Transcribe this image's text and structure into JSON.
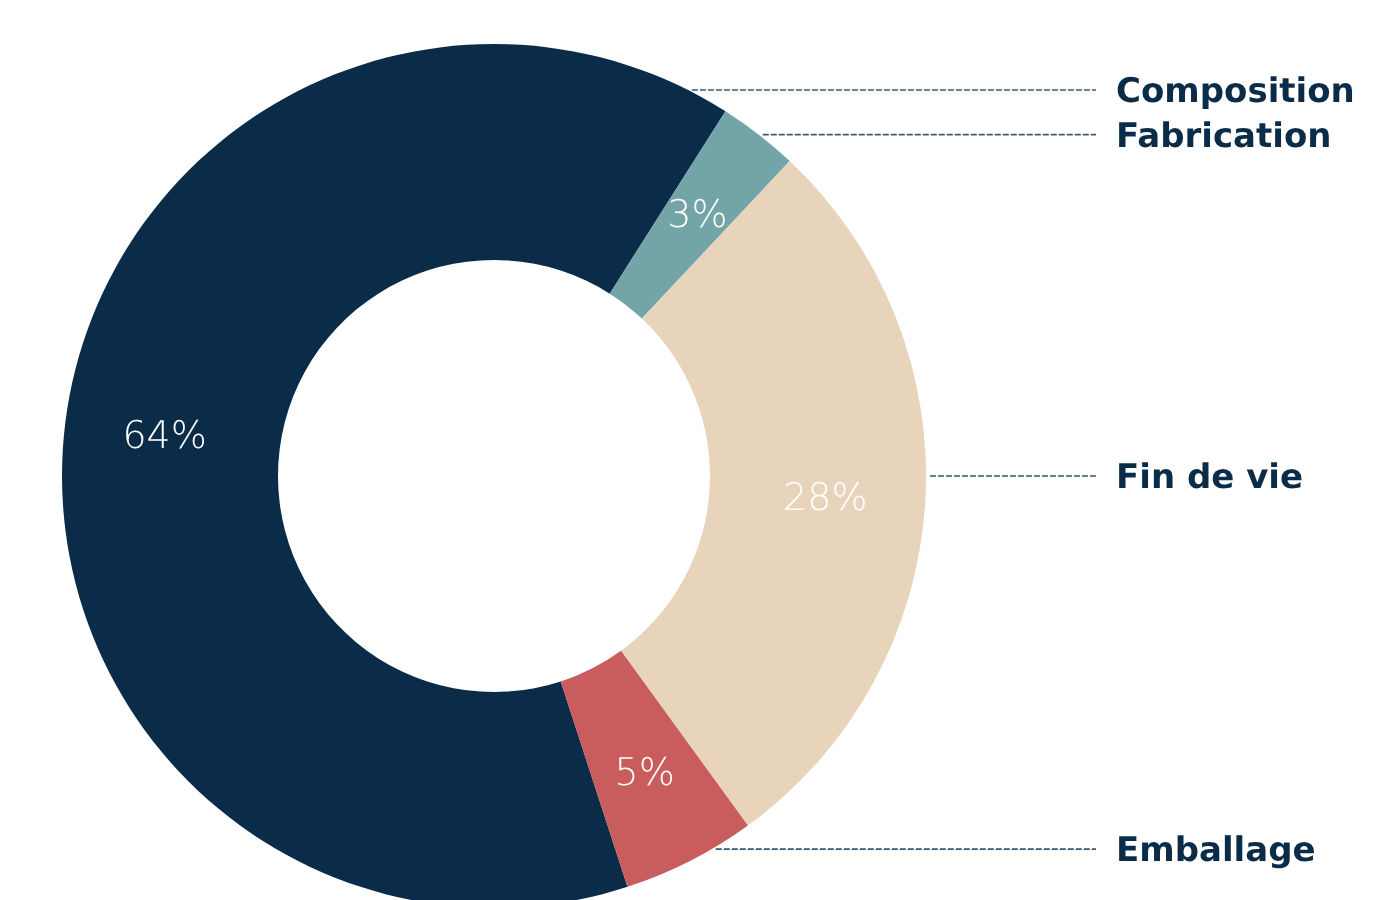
{
  "chart_data": {
    "type": "donut",
    "categories": [
      "Composition",
      "Fabrication",
      "Fin de vie",
      "Emballage"
    ],
    "values": [
      64,
      3,
      28,
      5
    ],
    "colors": [
      "#0b2c48",
      "#72a4a8",
      "#e8d4bb",
      "#c95c5c"
    ],
    "value_labels": [
      "64%",
      "3%",
      "28%",
      "5%"
    ]
  }
}
